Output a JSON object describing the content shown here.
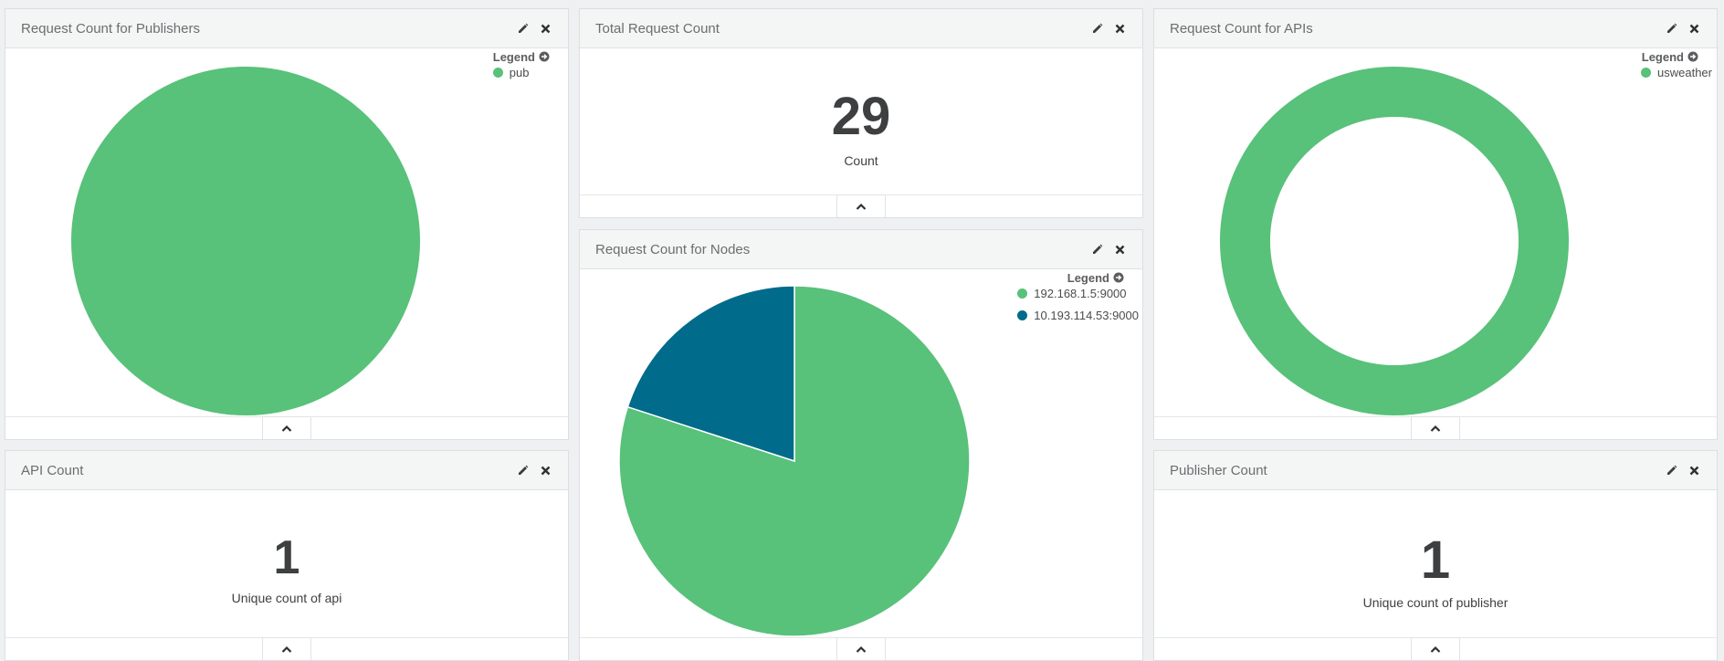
{
  "colors": {
    "green": "#58c17a",
    "teal": "#006b8a"
  },
  "icons": {
    "edit": "pencil-icon",
    "close": "close-icon",
    "collapse": "chevron-up-icon",
    "legend_toggle": "arrow-right-circle-icon"
  },
  "panels": {
    "publishers": {
      "title": "Request Count for Publishers",
      "legend_title": "Legend",
      "legend": [
        {
          "label": "pub",
          "color": "#58c17a"
        }
      ]
    },
    "total": {
      "title": "Total Request Count",
      "value": "29",
      "label": "Count"
    },
    "apis": {
      "title": "Request Count for APIs",
      "legend_title": "Legend",
      "legend": [
        {
          "label": "usweather",
          "color": "#58c17a"
        }
      ]
    },
    "nodes": {
      "title": "Request Count for Nodes",
      "legend_title": "Legend",
      "legend": [
        {
          "label": "192.168.1.5:9000",
          "color": "#58c17a"
        },
        {
          "label": "10.193.114.53:9000",
          "color": "#006b8a"
        }
      ]
    },
    "api_count": {
      "title": "API Count",
      "value": "1",
      "label": "Unique count of api"
    },
    "publisher_count": {
      "title": "Publisher Count",
      "value": "1",
      "label": "Unique count of publisher"
    }
  },
  "chart_data": [
    {
      "type": "pie",
      "categories": [
        "pub"
      ],
      "values": [
        1
      ],
      "title": "Request Count for Publishers"
    },
    {
      "type": "pie",
      "categories": [
        "192.168.1.5:9000",
        "10.193.114.53:9000"
      ],
      "values": [
        0.8,
        0.2
      ],
      "title": "Request Count for Nodes"
    },
    {
      "type": "pie",
      "donut": true,
      "categories": [
        "usweather"
      ],
      "values": [
        1
      ],
      "title": "Request Count for APIs"
    }
  ]
}
